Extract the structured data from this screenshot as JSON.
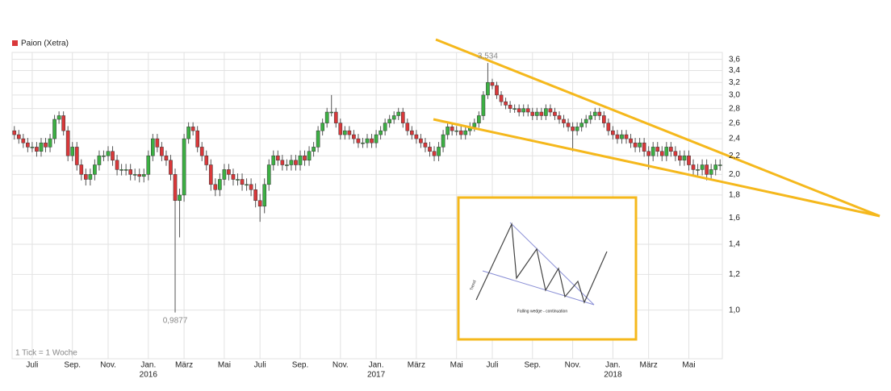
{
  "chart_data": {
    "type": "candlestick",
    "legend": "Paion (Xetra)",
    "legend_color": "#d9383a",
    "color_up": "#3cb043",
    "color_down": "#d9383a",
    "note": "1 Tick = 1 Woche",
    "log_y": true,
    "grid": true,
    "open": [
      2.5,
      2.45,
      2.4,
      2.35,
      2.3,
      2.3,
      2.25,
      2.35,
      2.3,
      2.4,
      2.65,
      2.7,
      2.5,
      2.2,
      2.3,
      2.1,
      2.0,
      1.95,
      2.0,
      2.1,
      2.2,
      2.2,
      2.25,
      2.15,
      2.05,
      2.05,
      2.05,
      2.0,
      2.0,
      1.98,
      2.0,
      2.2,
      2.4,
      2.3,
      2.2,
      2.15,
      2.0,
      1.75,
      1.8,
      2.4,
      2.55,
      2.5,
      2.3,
      2.2,
      2.1,
      1.9,
      1.85,
      1.95,
      2.05,
      2.0,
      1.95,
      1.95,
      1.9,
      1.9,
      1.85,
      1.75,
      1.7,
      1.9,
      2.1,
      2.2,
      2.15,
      2.1,
      2.1,
      2.15,
      2.1,
      2.2,
      2.15,
      2.25,
      2.3,
      2.5,
      2.6,
      2.75,
      2.75,
      2.6,
      2.45,
      2.5,
      2.45,
      2.4,
      2.35,
      2.35,
      2.4,
      2.35,
      2.45,
      2.5,
      2.6,
      2.65,
      2.7,
      2.75,
      2.6,
      2.5,
      2.45,
      2.4,
      2.35,
      2.3,
      2.25,
      2.2,
      2.3,
      2.45,
      2.55,
      2.5,
      2.5,
      2.45,
      2.5,
      2.55,
      2.6,
      2.7,
      3.0,
      3.2,
      3.15,
      3.0,
      2.9,
      2.85,
      2.8,
      2.8,
      2.75,
      2.8,
      2.75,
      2.7,
      2.75,
      2.7,
      2.8,
      2.75,
      2.7,
      2.65,
      2.6,
      2.55,
      2.5,
      2.55,
      2.6,
      2.65,
      2.7,
      2.75,
      2.7,
      2.6,
      2.5,
      2.45,
      2.4,
      2.45,
      2.4,
      2.35,
      2.3,
      2.35,
      2.25,
      2.2,
      2.3,
      2.25,
      2.2,
      2.3,
      2.25,
      2.2,
      2.15,
      2.2,
      2.1,
      2.05,
      2.05,
      2.1,
      2.0,
      2.05,
      2.1
    ],
    "high": [
      2.56,
      2.51,
      2.46,
      2.41,
      2.36,
      2.36,
      2.41,
      2.41,
      2.46,
      2.71,
      2.76,
      2.76,
      2.56,
      2.36,
      2.36,
      2.16,
      2.06,
      2.06,
      2.16,
      2.26,
      2.26,
      2.31,
      2.31,
      2.21,
      2.11,
      2.11,
      2.11,
      2.06,
      2.06,
      2.06,
      2.26,
      2.46,
      2.46,
      2.36,
      2.26,
      2.21,
      2.06,
      1.86,
      2.46,
      2.61,
      2.61,
      2.56,
      2.36,
      2.26,
      2.16,
      1.96,
      2.01,
      2.11,
      2.11,
      2.06,
      2.01,
      2.01,
      1.96,
      1.96,
      1.91,
      1.81,
      1.96,
      2.16,
      2.26,
      2.26,
      2.21,
      2.16,
      2.21,
      2.21,
      2.26,
      2.26,
      2.31,
      2.36,
      2.56,
      2.66,
      2.81,
      3.0,
      2.81,
      2.66,
      2.56,
      2.56,
      2.51,
      2.46,
      2.41,
      2.46,
      2.46,
      2.51,
      2.56,
      2.66,
      2.71,
      2.76,
      2.81,
      2.81,
      2.66,
      2.56,
      2.51,
      2.46,
      2.41,
      2.36,
      2.31,
      2.36,
      2.51,
      2.61,
      2.61,
      2.56,
      2.56,
      2.56,
      2.61,
      2.66,
      2.76,
      3.06,
      3.534,
      3.26,
      3.21,
      3.06,
      2.96,
      2.91,
      2.86,
      2.86,
      2.86,
      2.86,
      2.81,
      2.81,
      2.81,
      2.86,
      2.86,
      2.81,
      2.76,
      2.71,
      2.66,
      2.61,
      2.61,
      2.66,
      2.71,
      2.76,
      2.81,
      2.81,
      2.76,
      2.66,
      2.56,
      2.51,
      2.51,
      2.51,
      2.46,
      2.41,
      2.41,
      2.41,
      2.31,
      2.36,
      2.36,
      2.31,
      2.36,
      2.36,
      2.31,
      2.26,
      2.26,
      2.26,
      2.16,
      2.11,
      2.16,
      2.16,
      2.11,
      2.16,
      2.16
    ],
    "low": [
      2.39,
      2.34,
      2.29,
      2.24,
      2.24,
      2.19,
      2.19,
      2.24,
      2.24,
      2.34,
      2.59,
      2.44,
      2.14,
      2.14,
      2.04,
      1.94,
      1.89,
      1.89,
      1.94,
      2.04,
      2.14,
      2.14,
      2.09,
      1.99,
      1.99,
      1.99,
      1.94,
      1.94,
      1.92,
      1.92,
      1.94,
      2.14,
      2.24,
      2.14,
      2.09,
      1.94,
      0.9877,
      1.45,
      1.74,
      2.34,
      2.44,
      2.24,
      2.14,
      2.04,
      1.84,
      1.79,
      1.79,
      1.89,
      1.94,
      1.89,
      1.89,
      1.84,
      1.84,
      1.79,
      1.69,
      1.57,
      1.64,
      1.84,
      2.04,
      2.09,
      2.04,
      2.04,
      2.04,
      2.04,
      2.04,
      2.09,
      2.09,
      2.19,
      2.24,
      2.44,
      2.54,
      2.69,
      2.54,
      2.39,
      2.39,
      2.39,
      2.34,
      2.29,
      2.29,
      2.29,
      2.29,
      2.29,
      2.39,
      2.44,
      2.54,
      2.59,
      2.64,
      2.54,
      2.44,
      2.39,
      2.34,
      2.29,
      2.24,
      2.19,
      2.14,
      2.14,
      2.24,
      2.39,
      2.44,
      2.44,
      2.39,
      2.39,
      2.44,
      2.49,
      2.54,
      2.64,
      2.94,
      3.09,
      2.94,
      2.84,
      2.79,
      2.74,
      2.74,
      2.69,
      2.69,
      2.69,
      2.64,
      2.64,
      2.64,
      2.64,
      2.69,
      2.64,
      2.59,
      2.54,
      2.49,
      2.25,
      2.44,
      2.49,
      2.54,
      2.59,
      2.64,
      2.64,
      2.54,
      2.44,
      2.39,
      2.34,
      2.34,
      2.34,
      2.29,
      2.24,
      2.24,
      2.19,
      2.05,
      2.14,
      2.19,
      2.14,
      2.14,
      2.19,
      2.14,
      2.09,
      2.09,
      2.04,
      1.99,
      1.99,
      1.99,
      1.94,
      1.94,
      1.99,
      2.04
    ],
    "close": [
      2.45,
      2.4,
      2.35,
      2.3,
      2.3,
      2.25,
      2.35,
      2.3,
      2.4,
      2.65,
      2.7,
      2.5,
      2.2,
      2.3,
      2.1,
      2.0,
      1.95,
      2.0,
      2.1,
      2.2,
      2.2,
      2.25,
      2.15,
      2.05,
      2.05,
      2.05,
      2.0,
      2.0,
      1.98,
      2.0,
      2.2,
      2.4,
      2.3,
      2.2,
      2.15,
      2.0,
      1.75,
      1.8,
      2.4,
      2.55,
      2.5,
      2.3,
      2.2,
      2.1,
      1.9,
      1.85,
      1.95,
      2.05,
      2.0,
      1.95,
      1.95,
      1.9,
      1.9,
      1.85,
      1.75,
      1.7,
      1.9,
      2.1,
      2.2,
      2.15,
      2.1,
      2.1,
      2.15,
      2.1,
      2.2,
      2.15,
      2.25,
      2.3,
      2.5,
      2.6,
      2.75,
      2.75,
      2.6,
      2.45,
      2.5,
      2.45,
      2.4,
      2.35,
      2.35,
      2.4,
      2.35,
      2.45,
      2.5,
      2.6,
      2.65,
      2.7,
      2.75,
      2.6,
      2.5,
      2.45,
      2.4,
      2.35,
      2.3,
      2.25,
      2.2,
      2.3,
      2.45,
      2.55,
      2.5,
      2.5,
      2.45,
      2.5,
      2.55,
      2.6,
      2.7,
      3.0,
      3.2,
      3.15,
      3.0,
      2.9,
      2.85,
      2.8,
      2.8,
      2.75,
      2.8,
      2.75,
      2.7,
      2.75,
      2.7,
      2.8,
      2.75,
      2.7,
      2.65,
      2.6,
      2.55,
      2.5,
      2.55,
      2.6,
      2.65,
      2.7,
      2.75,
      2.7,
      2.6,
      2.5,
      2.45,
      2.4,
      2.45,
      2.4,
      2.35,
      2.3,
      2.35,
      2.25,
      2.2,
      2.3,
      2.25,
      2.2,
      2.3,
      2.25,
      2.2,
      2.15,
      2.2,
      2.1,
      2.05,
      2.05,
      2.1,
      2.0,
      2.05,
      2.1,
      2.1
    ],
    "xlim": [
      -0.5,
      158.5
    ],
    "xticks": [
      {
        "value": 4,
        "label": "Juli"
      },
      {
        "value": 13,
        "label": "Sep."
      },
      {
        "value": 21,
        "label": "Nov."
      },
      {
        "value": 30,
        "label": "Jan."
      },
      {
        "value": 38,
        "label": "März"
      },
      {
        "value": 47,
        "label": "Mai"
      },
      {
        "value": 55,
        "label": "Juli"
      },
      {
        "value": 64,
        "label": "Sep."
      },
      {
        "value": 73,
        "label": "Nov."
      },
      {
        "value": 81,
        "label": "Jan."
      },
      {
        "value": 90,
        "label": "März"
      },
      {
        "value": 99,
        "label": "Mai"
      },
      {
        "value": 107,
        "label": "Juli"
      },
      {
        "value": 116,
        "label": "Sep."
      },
      {
        "value": 125,
        "label": "Nov."
      },
      {
        "value": 134,
        "label": "Jan."
      },
      {
        "value": 142,
        "label": "März"
      },
      {
        "value": 151,
        "label": "Mai"
      }
    ],
    "year_ticks": [
      {
        "value": 30,
        "label": "2016"
      },
      {
        "value": 81,
        "label": "2017"
      },
      {
        "value": 134,
        "label": "2018"
      }
    ],
    "ylim": [
      0.78,
      3.73
    ],
    "yticks": [
      {
        "value": 1.0,
        "label": "1,0"
      },
      {
        "value": 1.2,
        "label": "1,2"
      },
      {
        "value": 1.4,
        "label": "1,4"
      },
      {
        "value": 1.6,
        "label": "1,6"
      },
      {
        "value": 1.8,
        "label": "1,8"
      },
      {
        "value": 2.0,
        "label": "2,0"
      },
      {
        "value": 2.2,
        "label": "2,2"
      },
      {
        "value": 2.4,
        "label": "2,4"
      },
      {
        "value": 2.6,
        "label": "2,6"
      },
      {
        "value": 2.8,
        "label": "2,8"
      },
      {
        "value": 3.0,
        "label": "3,0"
      },
      {
        "value": 3.2,
        "label": "3,2"
      },
      {
        "value": 3.4,
        "label": "3,4"
      },
      {
        "value": 3.6,
        "label": "3,6"
      }
    ],
    "annotations": [
      {
        "text": "3,534",
        "x": 106,
        "y": 3.534
      },
      {
        "text": "0,9877",
        "x": 36,
        "y": 0.9877
      }
    ]
  },
  "inset": {
    "caption": "Falling wedge - continuation",
    "axis_label": "Trend"
  }
}
